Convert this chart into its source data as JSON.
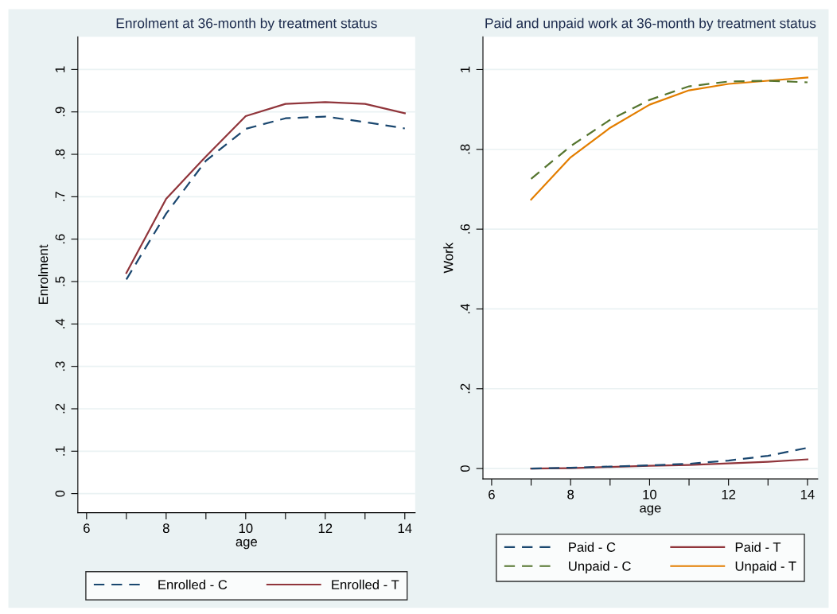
{
  "chart_data": [
    {
      "type": "line",
      "title": "Enrolment at 36-month by treatment status",
      "xlabel": "age",
      "ylabel": "Enrolment",
      "x": [
        7,
        8,
        9,
        10,
        11,
        12,
        13,
        14
      ],
      "series": [
        {
          "name": "Enrolled - C",
          "color": "#1a476f",
          "line_style": "dashed",
          "values": [
            0.505,
            0.66,
            0.785,
            0.86,
            0.885,
            0.889,
            0.876,
            0.861
          ]
        },
        {
          "name": "Enrolled - T",
          "color": "#90353b",
          "line_style": "solid",
          "values": [
            0.52,
            0.695,
            0.795,
            0.89,
            0.919,
            0.923,
            0.919,
            0.897
          ]
        }
      ],
      "xlim": [
        5.78,
        14.26
      ],
      "xticks": [
        6,
        {
          "value": 7,
          "label": null
        },
        8,
        {
          "value": 9,
          "label": null
        },
        10,
        {
          "value": 11,
          "label": null
        },
        12,
        {
          "value": 13,
          "label": null
        },
        14
      ],
      "ylim": [
        -0.045,
        1.077
      ],
      "yticks": [
        {
          "value": 0,
          "label": "0"
        },
        {
          "value": 0.1,
          "label": ".1"
        },
        {
          "value": 0.2,
          "label": ".2"
        },
        {
          "value": 0.3,
          "label": ".3"
        },
        {
          "value": 0.4,
          "label": ".4"
        },
        {
          "value": 0.5,
          "label": ".5"
        },
        {
          "value": 0.6,
          "label": ".6"
        },
        {
          "value": 0.7,
          "label": ".7"
        },
        {
          "value": 0.8,
          "label": ".8"
        },
        {
          "value": 0.9,
          "label": ".9"
        },
        {
          "value": 1,
          "label": "1"
        }
      ],
      "grid": "y",
      "legend": "bottom"
    },
    {
      "type": "line",
      "title": "Paid and unpaid work at 36-month by treatment status",
      "xlabel": "age",
      "ylabel": "Work",
      "x": [
        7,
        8,
        9,
        10,
        11,
        12,
        13,
        14
      ],
      "series": [
        {
          "name": "Paid - C",
          "color": "#1a476f",
          "line_style": "dashed",
          "values": [
            0,
            0.002,
            0.005,
            0.008,
            0.012,
            0.02,
            0.032,
            0.052
          ]
        },
        {
          "name": "Paid - T",
          "color": "#90353b",
          "line_style": "solid",
          "values": [
            0,
            0.001,
            0.004,
            0.007,
            0.009,
            0.013,
            0.017,
            0.023
          ]
        },
        {
          "name": "Unpaid - C",
          "color": "#55752f",
          "line_style": "dashed",
          "values": [
            0.726,
            0.808,
            0.874,
            0.924,
            0.958,
            0.97,
            0.972,
            0.968
          ]
        },
        {
          "name": "Unpaid - T",
          "color": "#e37e00",
          "line_style": "solid",
          "values": [
            0.674,
            0.78,
            0.854,
            0.912,
            0.948,
            0.964,
            0.972,
            0.98
          ]
        }
      ],
      "xlim": [
        5.78,
        14.26
      ],
      "xticks": [
        6,
        {
          "value": 7,
          "label": null
        },
        8,
        {
          "value": 9,
          "label": null
        },
        10,
        {
          "value": 11,
          "label": null
        },
        12,
        {
          "value": 13,
          "label": null
        },
        14
      ],
      "ylim": [
        -0.026,
        1.082
      ],
      "yticks": [
        {
          "value": 0,
          "label": "0"
        },
        {
          "value": 0.2,
          "label": ".2"
        },
        {
          "value": 0.4,
          "label": ".4"
        },
        {
          "value": 0.6,
          "label": ".6"
        },
        {
          "value": 0.8,
          "label": ".8"
        },
        {
          "value": 1,
          "label": "1"
        }
      ],
      "grid": "y",
      "legend": "bottom"
    }
  ]
}
